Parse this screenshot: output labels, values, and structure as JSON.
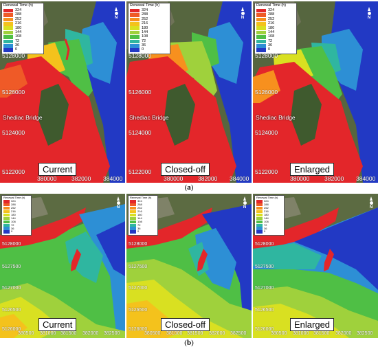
{
  "legend": {
    "title": "Renewal Time (h)",
    "levels": [
      "324",
      "288",
      "252",
      "216",
      "180",
      "144",
      "108",
      "72",
      "36",
      "0"
    ],
    "colors": [
      "#e3262a",
      "#ef5a27",
      "#f7901e",
      "#f4c21c",
      "#d9e021",
      "#9fd13c",
      "#4fbf45",
      "#2fb6a0",
      "#2d8fd5",
      "#2239c4"
    ]
  },
  "north_label": "N",
  "colors": {
    "water_low": "#2239c4",
    "land_dark": "#3f5a2e",
    "land_light": "#8c8f7a",
    "shore": "#b6b3a3"
  },
  "rows": [
    {
      "caption_prefix": "(",
      "caption_letter": "a",
      "caption_suffix": ")",
      "place_label": "Shediac Bridge",
      "y_ticks": [
        "5128000",
        "5126000",
        "5124000",
        "5122000"
      ],
      "x_ticks": [
        "380000",
        "382000",
        "384000"
      ],
      "scenarios": [
        "Current",
        "Closed-off",
        "Enlarged"
      ]
    },
    {
      "caption_prefix": "(",
      "caption_letter": "b",
      "caption_suffix": ")",
      "y_ticks": [
        "5128000",
        "5127500",
        "5127000",
        "5126500",
        "5126000"
      ],
      "x_ticks": [
        "380500",
        "381000",
        "381500",
        "382000",
        "382500"
      ],
      "scenarios": [
        "Current",
        "Closed-off",
        "Enlarged"
      ]
    }
  ]
}
